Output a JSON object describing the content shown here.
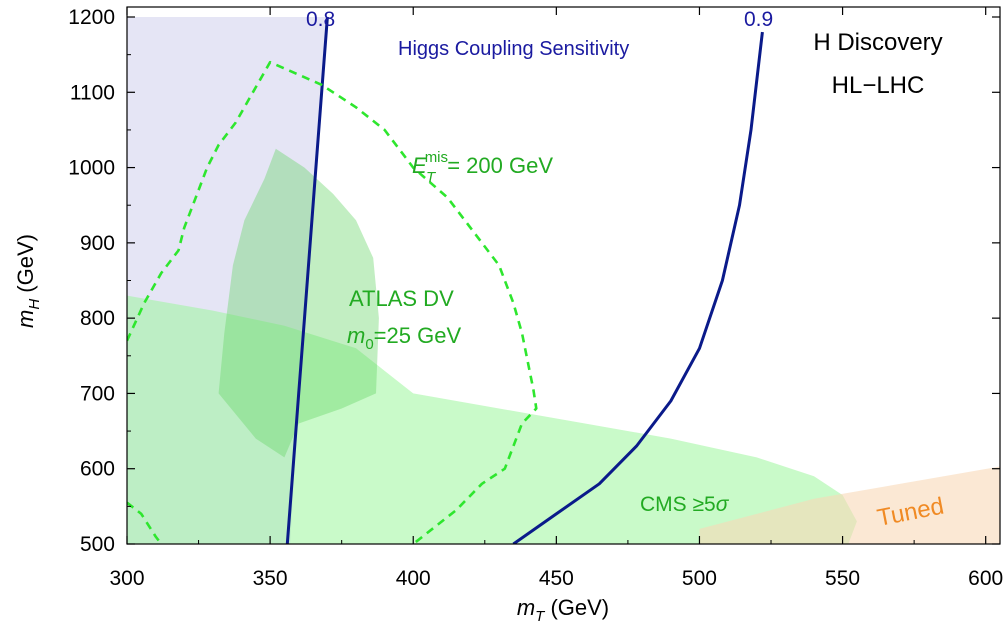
{
  "chart_data": {
    "type": "area",
    "xlabel": {
      "var": "m",
      "sub": "T",
      "unit": " (GeV)"
    },
    "ylabel": {
      "var": "m",
      "sub": "H",
      "unit": " (GeV)"
    },
    "xlim": [
      300,
      605
    ],
    "ylim": [
      500,
      1200
    ],
    "xticks": [
      300,
      350,
      400,
      450,
      500,
      550,
      600
    ],
    "yticks": [
      500,
      600,
      700,
      800,
      900,
      1000,
      1100,
      1200
    ],
    "grid": false,
    "colors": {
      "axis": "#000000",
      "contour": "#0a1a8a",
      "dashed": "#2ee62e",
      "green_label": "#22aa22",
      "blue_label": "#1a1aa0",
      "tuned": "#f08a24"
    },
    "regions": [
      {
        "id": "higgs-coupling",
        "fill": "#dcdcf2",
        "opacity": 0.75,
        "points": [
          [
            300,
            500
          ],
          [
            357,
            500
          ],
          [
            360,
            700
          ],
          [
            362,
            800
          ],
          [
            370,
            1200
          ],
          [
            300,
            1200
          ]
        ]
      },
      {
        "id": "cms",
        "fill": "#9cf59c",
        "opacity": 0.55,
        "points": [
          [
            300,
            500
          ],
          [
            300,
            830
          ],
          [
            330,
            810
          ],
          [
            355,
            790
          ],
          [
            380,
            760
          ],
          [
            400,
            700
          ],
          [
            430,
            680
          ],
          [
            460,
            660
          ],
          [
            490,
            640
          ],
          [
            520,
            615
          ],
          [
            540,
            590
          ],
          [
            550,
            565
          ],
          [
            555,
            530
          ],
          [
            552,
            500
          ]
        ]
      },
      {
        "id": "atlas-dv",
        "fill": "#66d466",
        "opacity": 0.4,
        "points": [
          [
            355,
            615
          ],
          [
            345,
            640
          ],
          [
            332,
            700
          ],
          [
            334,
            780
          ],
          [
            337,
            870
          ],
          [
            341,
            930
          ],
          [
            348,
            985
          ],
          [
            352,
            1025
          ],
          [
            362,
            1000
          ],
          [
            372,
            965
          ],
          [
            380,
            930
          ],
          [
            386,
            880
          ],
          [
            388,
            800
          ],
          [
            387,
            700
          ],
          [
            375,
            680
          ],
          [
            360,
            660
          ],
          [
            355,
            615
          ]
        ]
      },
      {
        "id": "tuned",
        "fill": "#f9d8b8",
        "opacity": 0.6,
        "points": [
          [
            500,
            500
          ],
          [
            605,
            500
          ],
          [
            605,
            603
          ],
          [
            540,
            560
          ],
          [
            500,
            520
          ]
        ]
      }
    ],
    "series": [
      {
        "name": "0.8",
        "style": "solid",
        "points": [
          [
            356,
            500
          ],
          [
            358,
            600
          ],
          [
            360,
            700
          ],
          [
            361,
            750
          ],
          [
            362,
            800
          ],
          [
            366,
            1000
          ],
          [
            370,
            1200
          ]
        ]
      },
      {
        "name": "0.9",
        "style": "solid",
        "points": [
          [
            435,
            500
          ],
          [
            450,
            540
          ],
          [
            465,
            580
          ],
          [
            478,
            630
          ],
          [
            490,
            690
          ],
          [
            500,
            760
          ],
          [
            508,
            850
          ],
          [
            514,
            950
          ],
          [
            518,
            1050
          ],
          [
            522,
            1180
          ]
        ]
      },
      {
        "name": "E_T^mis = 200 GeV",
        "style": "dashed",
        "points": [
          [
            300,
            770
          ],
          [
            306,
            820
          ],
          [
            312,
            860
          ],
          [
            318,
            890
          ],
          [
            320,
            920
          ],
          [
            324,
            960
          ],
          [
            328,
            1000
          ],
          [
            332,
            1030
          ],
          [
            338,
            1060
          ],
          [
            344,
            1100
          ],
          [
            350,
            1140
          ],
          [
            356,
            1130
          ],
          [
            368,
            1110
          ],
          [
            380,
            1080
          ],
          [
            390,
            1050
          ],
          [
            400,
            1000
          ],
          [
            412,
            960
          ],
          [
            422,
            910
          ],
          [
            430,
            870
          ],
          [
            435,
            820
          ],
          [
            438,
            780
          ],
          [
            442,
            705
          ],
          [
            443,
            680
          ],
          [
            438,
            660
          ],
          [
            432,
            600
          ],
          [
            424,
            580
          ],
          [
            415,
            545
          ],
          [
            400,
            500
          ]
        ]
      },
      {
        "name": "lower-left dashed",
        "style": "dashed",
        "points": [
          [
            300,
            555
          ],
          [
            305,
            540
          ],
          [
            310,
            510
          ],
          [
            312,
            500
          ]
        ]
      }
    ],
    "labels": {
      "contour_low": "0.8",
      "contour_high": "0.9",
      "higgs": "Higgs Coupling Sensitivity",
      "discovery_1": "H Discovery",
      "discovery_2": "HL−LHC",
      "emis_base": "E",
      "emis_sub": "T",
      "emis_sup": "mis",
      "emis_rest": "= 200 GeV",
      "atlas_1": "ATLAS DV",
      "atlas_2_var": "m",
      "atlas_2_sub": "0",
      "atlas_2_rest": "=25 GeV",
      "cms": "CMS ≥5",
      "cms_sigma": "σ",
      "tuned": "Tuned"
    }
  }
}
